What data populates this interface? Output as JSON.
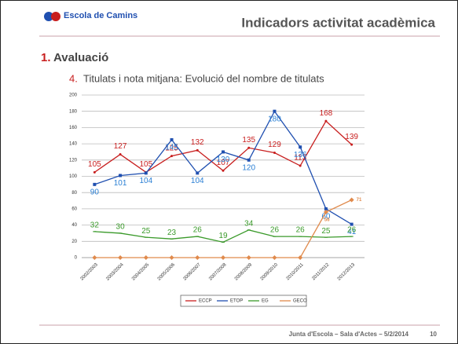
{
  "header": {
    "logo": "Escola de Camins",
    "title": "Indicadors activitat acadèmica"
  },
  "section": {
    "number": "1.",
    "title": "Avaluació"
  },
  "subsection": {
    "number": "4.",
    "title": "Titulats i nota mitjana: Evolució del nombre de titulats"
  },
  "footer": {
    "text": "Junta d'Escola – Sala d'Actes – 5/2/2014",
    "page": "10"
  },
  "chart_data": {
    "type": "line",
    "categories": [
      "2002/2003",
      "2003/2004",
      "2004/2005",
      "2005/2006",
      "2006/2007",
      "2007/2008",
      "2008/2009",
      "2009/2010",
      "2010/2011",
      "2011/2012",
      "2012/2013"
    ],
    "series": [
      {
        "name": "ECCP",
        "color": "#c81e1e",
        "values": [
          105,
          127,
          105,
          125,
          132,
          107,
          135,
          129,
          113,
          168,
          139
        ]
      },
      {
        "name": "ETOP",
        "color": "#1f4fb0",
        "values": [
          90,
          101,
          104,
          145,
          104,
          130,
          120,
          180,
          136,
          60,
          41
        ]
      },
      {
        "name": "EG",
        "color": "#3a9a2a",
        "values": [
          32,
          30,
          25,
          23,
          26,
          19,
          34,
          26,
          26,
          25,
          26
        ]
      },
      {
        "name": "GECO",
        "color": "#e08a4c",
        "values": [
          0,
          0,
          0,
          0,
          0,
          0,
          0,
          0,
          0,
          56,
          71
        ],
        "value_labels": [
          null,
          null,
          null,
          null,
          null,
          null,
          null,
          null,
          null,
          "56",
          "71"
        ]
      }
    ],
    "ylim": [
      0,
      200
    ],
    "yticks": [
      0,
      20,
      40,
      60,
      80,
      100,
      120,
      140,
      160,
      180,
      200
    ],
    "grid": true,
    "legend": "bottom"
  }
}
